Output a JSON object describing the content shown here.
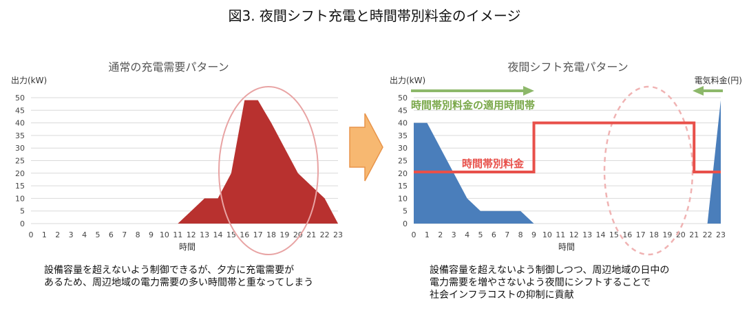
{
  "figure_title": "図3. 夜間シフト充電と時間帯別料金のイメージ",
  "colors": {
    "area_left": "#b8312f",
    "area_right": "#4a7ebb",
    "rate_line": "#e8504a",
    "band_arrow": "#8db86a",
    "band_text": "#7aa84a",
    "grid": "#d9d9d9",
    "ellipse_left": "#e8a3a3",
    "ellipse_right": "#f0b3b3",
    "center_arrow_fill": "#f7b871"
  },
  "chart_data": [
    {
      "type": "area",
      "title": "通常の充電需要パターン",
      "ylabel": "出力(kW)",
      "xlabel": "時間",
      "x": [
        0,
        1,
        2,
        3,
        4,
        5,
        6,
        7,
        8,
        9,
        10,
        11,
        12,
        13,
        14,
        15,
        16,
        17,
        18,
        19,
        20,
        21,
        22,
        23
      ],
      "values": [
        0,
        0,
        0,
        0,
        0,
        0,
        0,
        0,
        0,
        0,
        0,
        0,
        5,
        10,
        10,
        20,
        49,
        49,
        40,
        30,
        20,
        15,
        10,
        0
      ],
      "ylim": [
        0,
        50
      ],
      "yticks": [
        0,
        5,
        10,
        15,
        20,
        25,
        30,
        35,
        40,
        45,
        50
      ],
      "grid": true,
      "annotation": "ellipse around hours 14-21"
    },
    {
      "type": "area",
      "title": "夜間シフト充電パターン",
      "ylabel": "出力(kW)",
      "xlabel": "時間",
      "right_axis_label": "電気料金(円)",
      "x": [
        0,
        1,
        2,
        3,
        4,
        5,
        6,
        7,
        8,
        9,
        10,
        11,
        12,
        13,
        14,
        15,
        16,
        17,
        18,
        19,
        20,
        21,
        22,
        23
      ],
      "values": [
        40,
        40,
        30,
        20,
        10,
        5,
        5,
        5,
        5,
        0,
        0,
        0,
        0,
        0,
        0,
        0,
        0,
        0,
        0,
        0,
        0,
        0,
        0,
        49
      ],
      "ylim": [
        0,
        50
      ],
      "yticks": [
        0,
        5,
        10,
        15,
        20,
        25,
        30,
        35,
        40,
        45,
        50
      ],
      "grid": true,
      "rate_line": {
        "name": "時間帯別料金",
        "segments": [
          {
            "x_start": 0,
            "x_end": 9,
            "value": 20.5
          },
          {
            "x_start": 9,
            "x_end": 21,
            "value": 40
          },
          {
            "x_start": 21,
            "x_end": 23,
            "value": 20.5
          }
        ]
      },
      "band": {
        "label": "時間帯別料金の適用時間帯"
      },
      "annotation": "dashed ellipse around hours 15-20"
    }
  ],
  "captions": {
    "left": [
      "設備容量を超えないよう制御できるが、夕方に充電需要が",
      "あるため、周辺地域の電力需要の多い時間帯と重なってしまう"
    ],
    "right": [
      "設備容量を超えないよう制御しつつ、周辺地域の日中の",
      "電力需要を増やさないよう夜間にシフトすることで",
      "社会インフラコストの抑制に貢献"
    ]
  }
}
